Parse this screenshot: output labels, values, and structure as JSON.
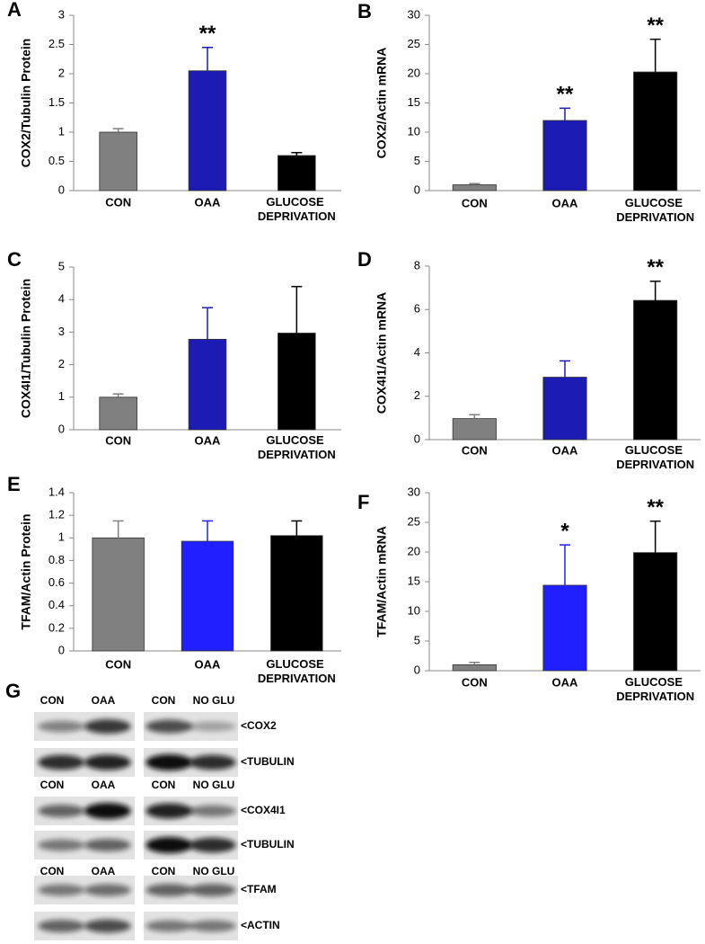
{
  "chart_data": [
    {
      "type": "bar",
      "label": "A",
      "ylabel": "COX2/Tubulin Protein",
      "categories": [
        "CON",
        "OAA",
        "GLUCOSE DEPRIVATION"
      ],
      "values": [
        1.0,
        2.05,
        0.6
      ],
      "errors": [
        0.06,
        0.4,
        0.05
      ],
      "colors": [
        "#808080",
        "#1c1cb4",
        "#000000"
      ],
      "significance": [
        null,
        "**",
        null
      ],
      "ylim": [
        0,
        3
      ],
      "yticks": [
        0,
        0.5,
        1,
        1.5,
        2,
        2.5,
        3
      ]
    },
    {
      "type": "bar",
      "label": "B",
      "ylabel": "COX2/Actin mRNA",
      "categories": [
        "CON",
        "OAA",
        "GLUCOSE DEPRIVATION"
      ],
      "values": [
        1.0,
        12.0,
        20.3
      ],
      "errors": [
        0.2,
        2.1,
        5.6
      ],
      "colors": [
        "#808080",
        "#1c1cb4",
        "#000000"
      ],
      "significance": [
        null,
        "**",
        "**"
      ],
      "ylim": [
        0,
        30
      ],
      "yticks": [
        0,
        5,
        10,
        15,
        20,
        25,
        30
      ]
    },
    {
      "type": "bar",
      "label": "C",
      "ylabel": "COX4I1/Tubulin Protein",
      "categories": [
        "CON",
        "OAA",
        "GLUCOSE DEPRIVATION"
      ],
      "values": [
        1.0,
        2.78,
        2.97
      ],
      "errors": [
        0.1,
        0.97,
        1.43
      ],
      "colors": [
        "#808080",
        "#1c1cb4",
        "#000000"
      ],
      "significance": [
        null,
        null,
        null
      ],
      "ylim": [
        0,
        5
      ],
      "yticks": [
        0,
        1,
        2,
        3,
        4,
        5
      ]
    },
    {
      "type": "bar",
      "label": "D",
      "ylabel": "COX4I1/Actin mRNA",
      "categories": [
        "CON",
        "OAA",
        "GLUCOSE DEPRIVATION"
      ],
      "values": [
        0.97,
        2.88,
        6.42
      ],
      "errors": [
        0.18,
        0.75,
        0.88
      ],
      "colors": [
        "#808080",
        "#1c1cb4",
        "#000000"
      ],
      "significance": [
        null,
        null,
        "**"
      ],
      "ylim": [
        0,
        8
      ],
      "yticks": [
        0,
        2,
        4,
        6,
        8
      ]
    },
    {
      "type": "bar",
      "label": "E",
      "ylabel": "TFAM/Actin Protein",
      "categories": [
        "CON",
        "OAA",
        "GLUCOSE DEPRIVATION"
      ],
      "values": [
        1.0,
        0.97,
        1.02
      ],
      "errors": [
        0.15,
        0.18,
        0.13
      ],
      "colors": [
        "#808080",
        "#1f1fff",
        "#000000"
      ],
      "significance": [
        null,
        null,
        null
      ],
      "ylim": [
        0,
        1.4
      ],
      "yticks": [
        0,
        0.2,
        0.4,
        0.6,
        0.8,
        1,
        1.2,
        1.4
      ]
    },
    {
      "type": "bar",
      "label": "F",
      "ylabel": "TFAM/Actin mRNA",
      "categories": [
        "CON",
        "OAA",
        "GLUCOSE DEPRIVATION"
      ],
      "values": [
        1.0,
        14.4,
        19.9
      ],
      "errors": [
        0.4,
        6.8,
        5.3
      ],
      "colors": [
        "#808080",
        "#1f1fff",
        "#000000"
      ],
      "significance": [
        null,
        "*",
        "**"
      ],
      "ylim": [
        0,
        30
      ],
      "yticks": [
        0,
        5,
        10,
        15,
        20,
        25,
        30
      ]
    }
  ],
  "blot": {
    "label": "G",
    "rows": [
      {
        "lanes": [
          "CON",
          "OAA",
          "CON",
          "NO GLU"
        ],
        "bands": [
          "<COX2",
          "<TUBULIN"
        ]
      },
      {
        "lanes": [
          "CON",
          "OAA",
          "CON",
          "NO GLU"
        ],
        "bands": [
          "<COX4I1",
          "<TUBULIN"
        ]
      },
      {
        "lanes": [
          "CON",
          "OAA",
          "CON",
          "NO GLU"
        ],
        "bands": [
          "<TFAM",
          "<ACTIN"
        ]
      }
    ]
  }
}
